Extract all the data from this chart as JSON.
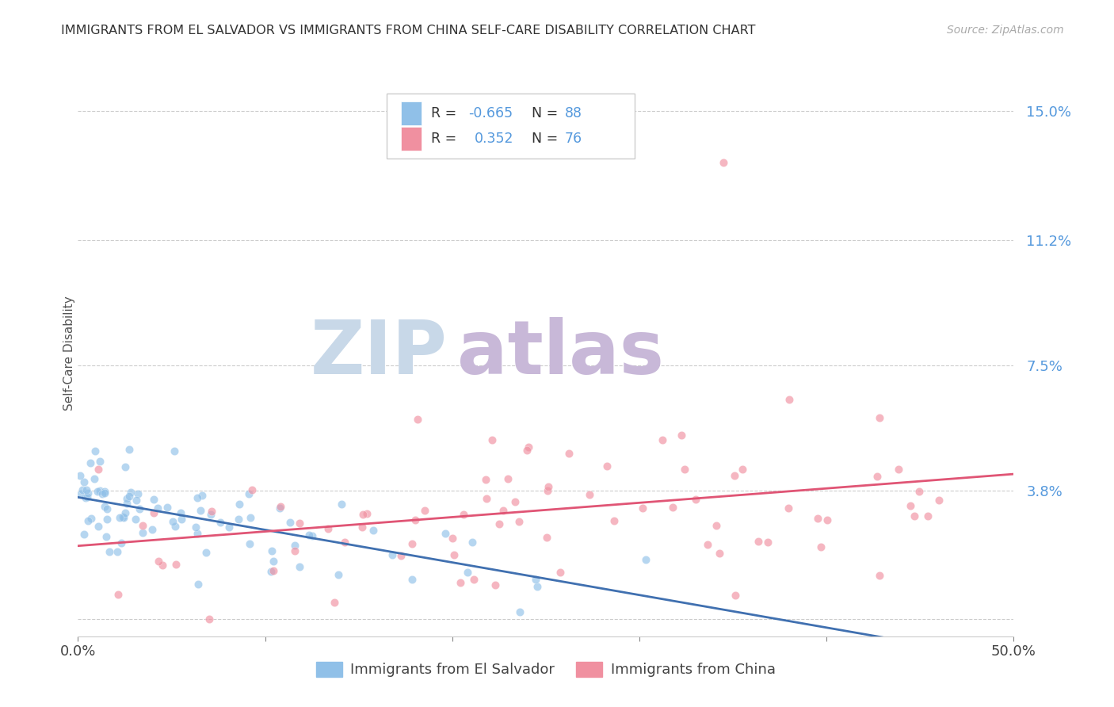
{
  "title": "IMMIGRANTS FROM EL SALVADOR VS IMMIGRANTS FROM CHINA SELF-CARE DISABILITY CORRELATION CHART",
  "source": "Source: ZipAtlas.com",
  "ylabel": "Self-Care Disability",
  "yticks": [
    0.0,
    0.038,
    0.075,
    0.112,
    0.15
  ],
  "ytick_labels": [
    "",
    "3.8%",
    "7.5%",
    "11.2%",
    "15.0%"
  ],
  "xmin": 0.0,
  "xmax": 0.5,
  "ymin": -0.005,
  "ymax": 0.162,
  "series1_name": "Immigrants from El Salvador",
  "series2_name": "Immigrants from China",
  "series1_color": "#90c0e8",
  "series2_color": "#f090a0",
  "series1_edge_color": "#6090c0",
  "series2_edge_color": "#d06070",
  "series1_line_color": "#4070b0",
  "series2_line_color": "#e05575",
  "R1": -0.665,
  "N1": 88,
  "R2": 0.352,
  "N2": 76,
  "background_color": "#ffffff",
  "grid_color": "#cccccc",
  "title_color": "#333333",
  "axis_label_color": "#5599dd",
  "watermark_zip_color": "#c8d8e8",
  "watermark_atlas_color": "#c8b8d8",
  "seed1": 42,
  "seed2": 7
}
